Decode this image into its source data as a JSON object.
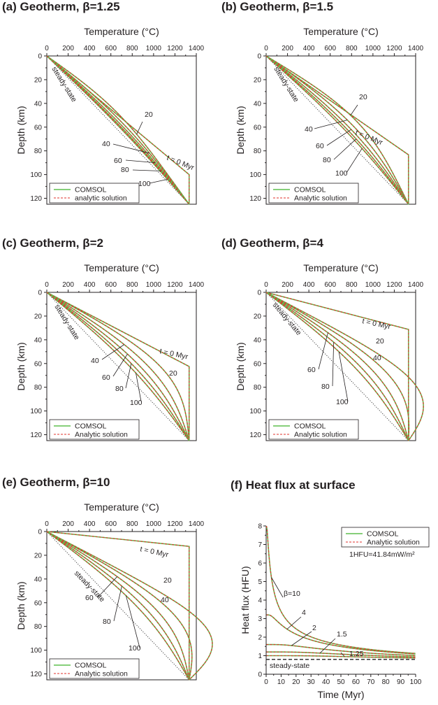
{
  "colors": {
    "comsol": "#5fbf4f",
    "analytic": "#e0312b",
    "axis": "#231f20",
    "steady": "#333333"
  },
  "panels": [
    {
      "title": "(a) Geotherm, β=1.25",
      "xlabel": "Temperature (°C)",
      "ylabel": "Depth (km)",
      "xticks": [
        "0",
        "200",
        "400",
        "600",
        "800",
        "1000",
        "1200",
        "1400"
      ],
      "yticks": [
        "0",
        "20",
        "40",
        "60",
        "80",
        "100",
        "120"
      ],
      "beta": 1.25,
      "legend": [
        "COMSOL",
        "analytic solution"
      ],
      "labels": {
        "steady": "steady-state",
        "t0": "t = 0 Myr",
        "l20": "20",
        "l40": "40",
        "l60": "60",
        "l80": "80",
        "l100": "100"
      }
    },
    {
      "title": "(b) Geotherm, β=1.5",
      "xlabel": "Temperature (°C)",
      "ylabel": "Depth (km)",
      "xticks": [
        "0",
        "200",
        "400",
        "600",
        "800",
        "1000",
        "1200",
        "1400"
      ],
      "yticks": [
        "0",
        "20",
        "40",
        "60",
        "80",
        "100",
        "120"
      ],
      "beta": 1.5,
      "legend": [
        "COMSOL",
        "Analytic solution"
      ],
      "labels": {
        "steady": "steady-state",
        "t0": "t = 0 Myr",
        "l20": "20",
        "l40": "40",
        "l60": "60",
        "l80": "80",
        "l100": "100"
      }
    },
    {
      "title": "(c) Geotherm, β=2",
      "xlabel": "Temperature (°C)",
      "ylabel": "Depth (km)",
      "xticks": [
        "0",
        "200",
        "400",
        "600",
        "800",
        "1000",
        "1200",
        "1400"
      ],
      "yticks": [
        "0",
        "20",
        "40",
        "60",
        "80",
        "100",
        "120"
      ],
      "beta": 2,
      "legend": [
        "COMSOL",
        "Analytic solution"
      ],
      "labels": {
        "steady": "steady-state",
        "t0": "t = 0 Myr",
        "l20": "20",
        "l40": "40",
        "l60": "60",
        "l80": "80",
        "l100": "100"
      }
    },
    {
      "title": "(d) Geotherm, β=4",
      "xlabel": "Temperature (°C)",
      "ylabel": "Depth (km)",
      "xticks": [
        "0",
        "200",
        "400",
        "600",
        "800",
        "1000",
        "1200",
        "1400"
      ],
      "yticks": [
        "0",
        "20",
        "40",
        "60",
        "80",
        "100",
        "120"
      ],
      "beta": 4,
      "legend": [
        "COMSOL",
        "Analytic solution"
      ],
      "labels": {
        "steady": "steady-state",
        "t0": "t = 0 Myr",
        "l20": "20",
        "l40": "40",
        "l60": "60",
        "l80": "80",
        "l100": "100"
      }
    },
    {
      "title": "(e) Geotherm, β=10",
      "xlabel": "Temperature (°C)",
      "ylabel": "Depth (km)",
      "xticks": [
        "0",
        "200",
        "400",
        "600",
        "800",
        "1000",
        "1200",
        "1400"
      ],
      "yticks": [
        "0",
        "20",
        "40",
        "60",
        "80",
        "100",
        "120"
      ],
      "beta": 10,
      "legend": [
        "COMSOL",
        "Analytic solution"
      ],
      "labels": {
        "steady": "steady-state",
        "t0": "t = 0 Myr",
        "l20": "20",
        "l40": "40",
        "l60": "60",
        "l80": "80",
        "l100": "100"
      }
    },
    {
      "title": "(f) Heat flux at surface",
      "xlabel": "Time (Myr)",
      "ylabel": "Heat flux (HFU)",
      "xticks": [
        "0",
        "10",
        "20",
        "30",
        "40",
        "50",
        "60",
        "70",
        "80",
        "90",
        "100"
      ],
      "yticks": [
        "0",
        "1",
        "2",
        "3",
        "4",
        "5",
        "6",
        "7",
        "8"
      ],
      "legend": [
        "COMSOL",
        "Analytic solution"
      ],
      "note": "1HFU=41.84mW/m²",
      "labels": {
        "steady": "steady-state",
        "b10": "β=10",
        "b4": "4",
        "b2": "2",
        "b15": "1.5",
        "b125": "1.25"
      }
    }
  ],
  "chart_data": [
    {
      "type": "line",
      "title": "(a) Geotherm, β=1.25",
      "xlabel": "Temperature (°C)",
      "ylabel": "Depth (km)",
      "xlim": [
        0,
        1400
      ],
      "ylim": [
        125,
        0
      ],
      "model": {
        "Tm_C": 1333,
        "lithosphere_thickness_km": 125,
        "beta": 1.25,
        "initial_step_depth_km": 100
      },
      "series": [
        {
          "name": "steady-state",
          "x": [
            0,
            1333
          ],
          "y": [
            0,
            125
          ]
        },
        {
          "name": "t = 0 Myr"
        },
        {
          "name": "20"
        },
        {
          "name": "40"
        },
        {
          "name": "60"
        },
        {
          "name": "80"
        },
        {
          "name": "100"
        }
      ],
      "legend": [
        "COMSOL",
        "analytic solution"
      ]
    },
    {
      "type": "line",
      "title": "(b) Geotherm, β=1.5",
      "xlabel": "Temperature (°C)",
      "ylabel": "Depth (km)",
      "xlim": [
        0,
        1400
      ],
      "ylim": [
        125,
        0
      ],
      "model": {
        "Tm_C": 1333,
        "lithosphere_thickness_km": 125,
        "beta": 1.5,
        "initial_step_depth_km": 83.3
      },
      "series": [
        {
          "name": "steady-state",
          "x": [
            0,
            1333
          ],
          "y": [
            0,
            125
          ]
        },
        {
          "name": "t = 0 Myr"
        },
        {
          "name": "20"
        },
        {
          "name": "40"
        },
        {
          "name": "60"
        },
        {
          "name": "80"
        },
        {
          "name": "100"
        }
      ],
      "legend": [
        "COMSOL",
        "Analytic solution"
      ]
    },
    {
      "type": "line",
      "title": "(c) Geotherm, β=2",
      "xlabel": "Temperature (°C)",
      "ylabel": "Depth (km)",
      "xlim": [
        0,
        1400
      ],
      "ylim": [
        125,
        0
      ],
      "model": {
        "Tm_C": 1333,
        "lithosphere_thickness_km": 125,
        "beta": 2,
        "initial_step_depth_km": 62.5
      },
      "series": [
        {
          "name": "steady-state",
          "x": [
            0,
            1333
          ],
          "y": [
            0,
            125
          ]
        },
        {
          "name": "t = 0 Myr"
        },
        {
          "name": "20"
        },
        {
          "name": "40"
        },
        {
          "name": "60"
        },
        {
          "name": "80"
        },
        {
          "name": "100"
        }
      ],
      "legend": [
        "COMSOL",
        "Analytic solution"
      ]
    },
    {
      "type": "line",
      "title": "(d) Geotherm, β=4",
      "xlabel": "Temperature (°C)",
      "ylabel": "Depth (km)",
      "xlim": [
        0,
        1400
      ],
      "ylim": [
        125,
        0
      ],
      "model": {
        "Tm_C": 1333,
        "lithosphere_thickness_km": 125,
        "beta": 4,
        "initial_step_depth_km": 31.25
      },
      "series": [
        {
          "name": "steady-state",
          "x": [
            0,
            1333
          ],
          "y": [
            0,
            125
          ]
        },
        {
          "name": "t = 0 Myr"
        },
        {
          "name": "20"
        },
        {
          "name": "40"
        },
        {
          "name": "60"
        },
        {
          "name": "80"
        },
        {
          "name": "100"
        }
      ],
      "legend": [
        "COMSOL",
        "Analytic solution"
      ]
    },
    {
      "type": "line",
      "title": "(e) Geotherm, β=10",
      "xlabel": "Temperature (°C)",
      "ylabel": "Depth (km)",
      "xlim": [
        0,
        1400
      ],
      "ylim": [
        125,
        0
      ],
      "model": {
        "Tm_C": 1333,
        "lithosphere_thickness_km": 125,
        "beta": 10,
        "initial_step_depth_km": 12.5
      },
      "series": [
        {
          "name": "steady-state",
          "x": [
            0,
            1333
          ],
          "y": [
            0,
            125
          ]
        },
        {
          "name": "t = 0 Myr"
        },
        {
          "name": "20"
        },
        {
          "name": "40"
        },
        {
          "name": "60"
        },
        {
          "name": "80"
        },
        {
          "name": "100"
        }
      ],
      "legend": [
        "COMSOL",
        "Analytic solution"
      ]
    },
    {
      "type": "line",
      "title": "(f) Heat flux at surface",
      "xlabel": "Time (Myr)",
      "ylabel": "Heat flux (HFU)",
      "xlim": [
        0,
        100
      ],
      "ylim": [
        0,
        8
      ],
      "steady_state_HFU": 0.8,
      "series": [
        {
          "name": "β=10",
          "beta": 10,
          "initial_HFU": 7.8
        },
        {
          "name": "4",
          "beta": 4,
          "initial_HFU": 3.2
        },
        {
          "name": "2",
          "beta": 2,
          "initial_HFU": 1.6
        },
        {
          "name": "1.5",
          "beta": 1.5,
          "initial_HFU": 1.2
        },
        {
          "name": "1.25",
          "beta": 1.25,
          "initial_HFU": 1.0
        }
      ],
      "legend": [
        "COMSOL",
        "Analytic solution"
      ]
    }
  ]
}
